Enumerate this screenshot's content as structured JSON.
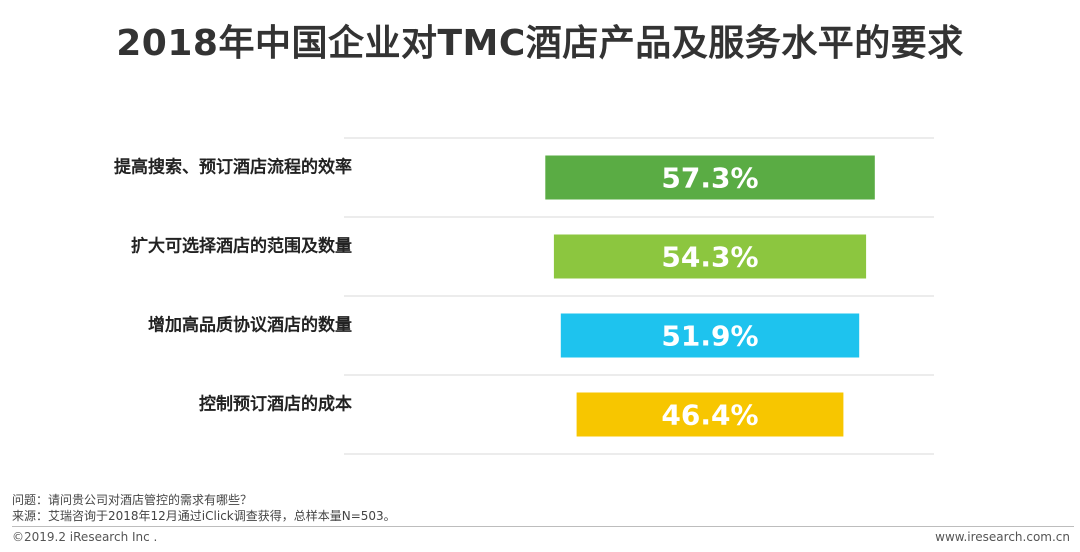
{
  "title": "2018年中国企业对TMC酒店产品及服务水平的要求",
  "chart_data": {
    "type": "bar",
    "orientation": "horizontal",
    "categories": [
      "提高搜索、预订酒店流程的效率",
      "扩大可选择酒店的范围及数量",
      "增加高品质协议酒店的数量",
      "控制预订酒店的成本"
    ],
    "values": [
      57.3,
      54.3,
      51.9,
      46.4
    ],
    "value_labels": [
      "57.3%",
      "54.3%",
      "51.9%",
      "46.4%"
    ],
    "colors": [
      "#5aac44",
      "#8cc63f",
      "#1ec3ee",
      "#f7c600"
    ],
    "grid": true
  },
  "notes": {
    "question": "问题：请问贵公司对酒店管控的需求有哪些？",
    "source": "来源：艾瑞咨询于2018年12月通过iClick调查获得，总样本量N=503。"
  },
  "footer": {
    "copyright": "©2019.2 iResearch Inc .",
    "website": "www.iresearch.com.cn"
  }
}
